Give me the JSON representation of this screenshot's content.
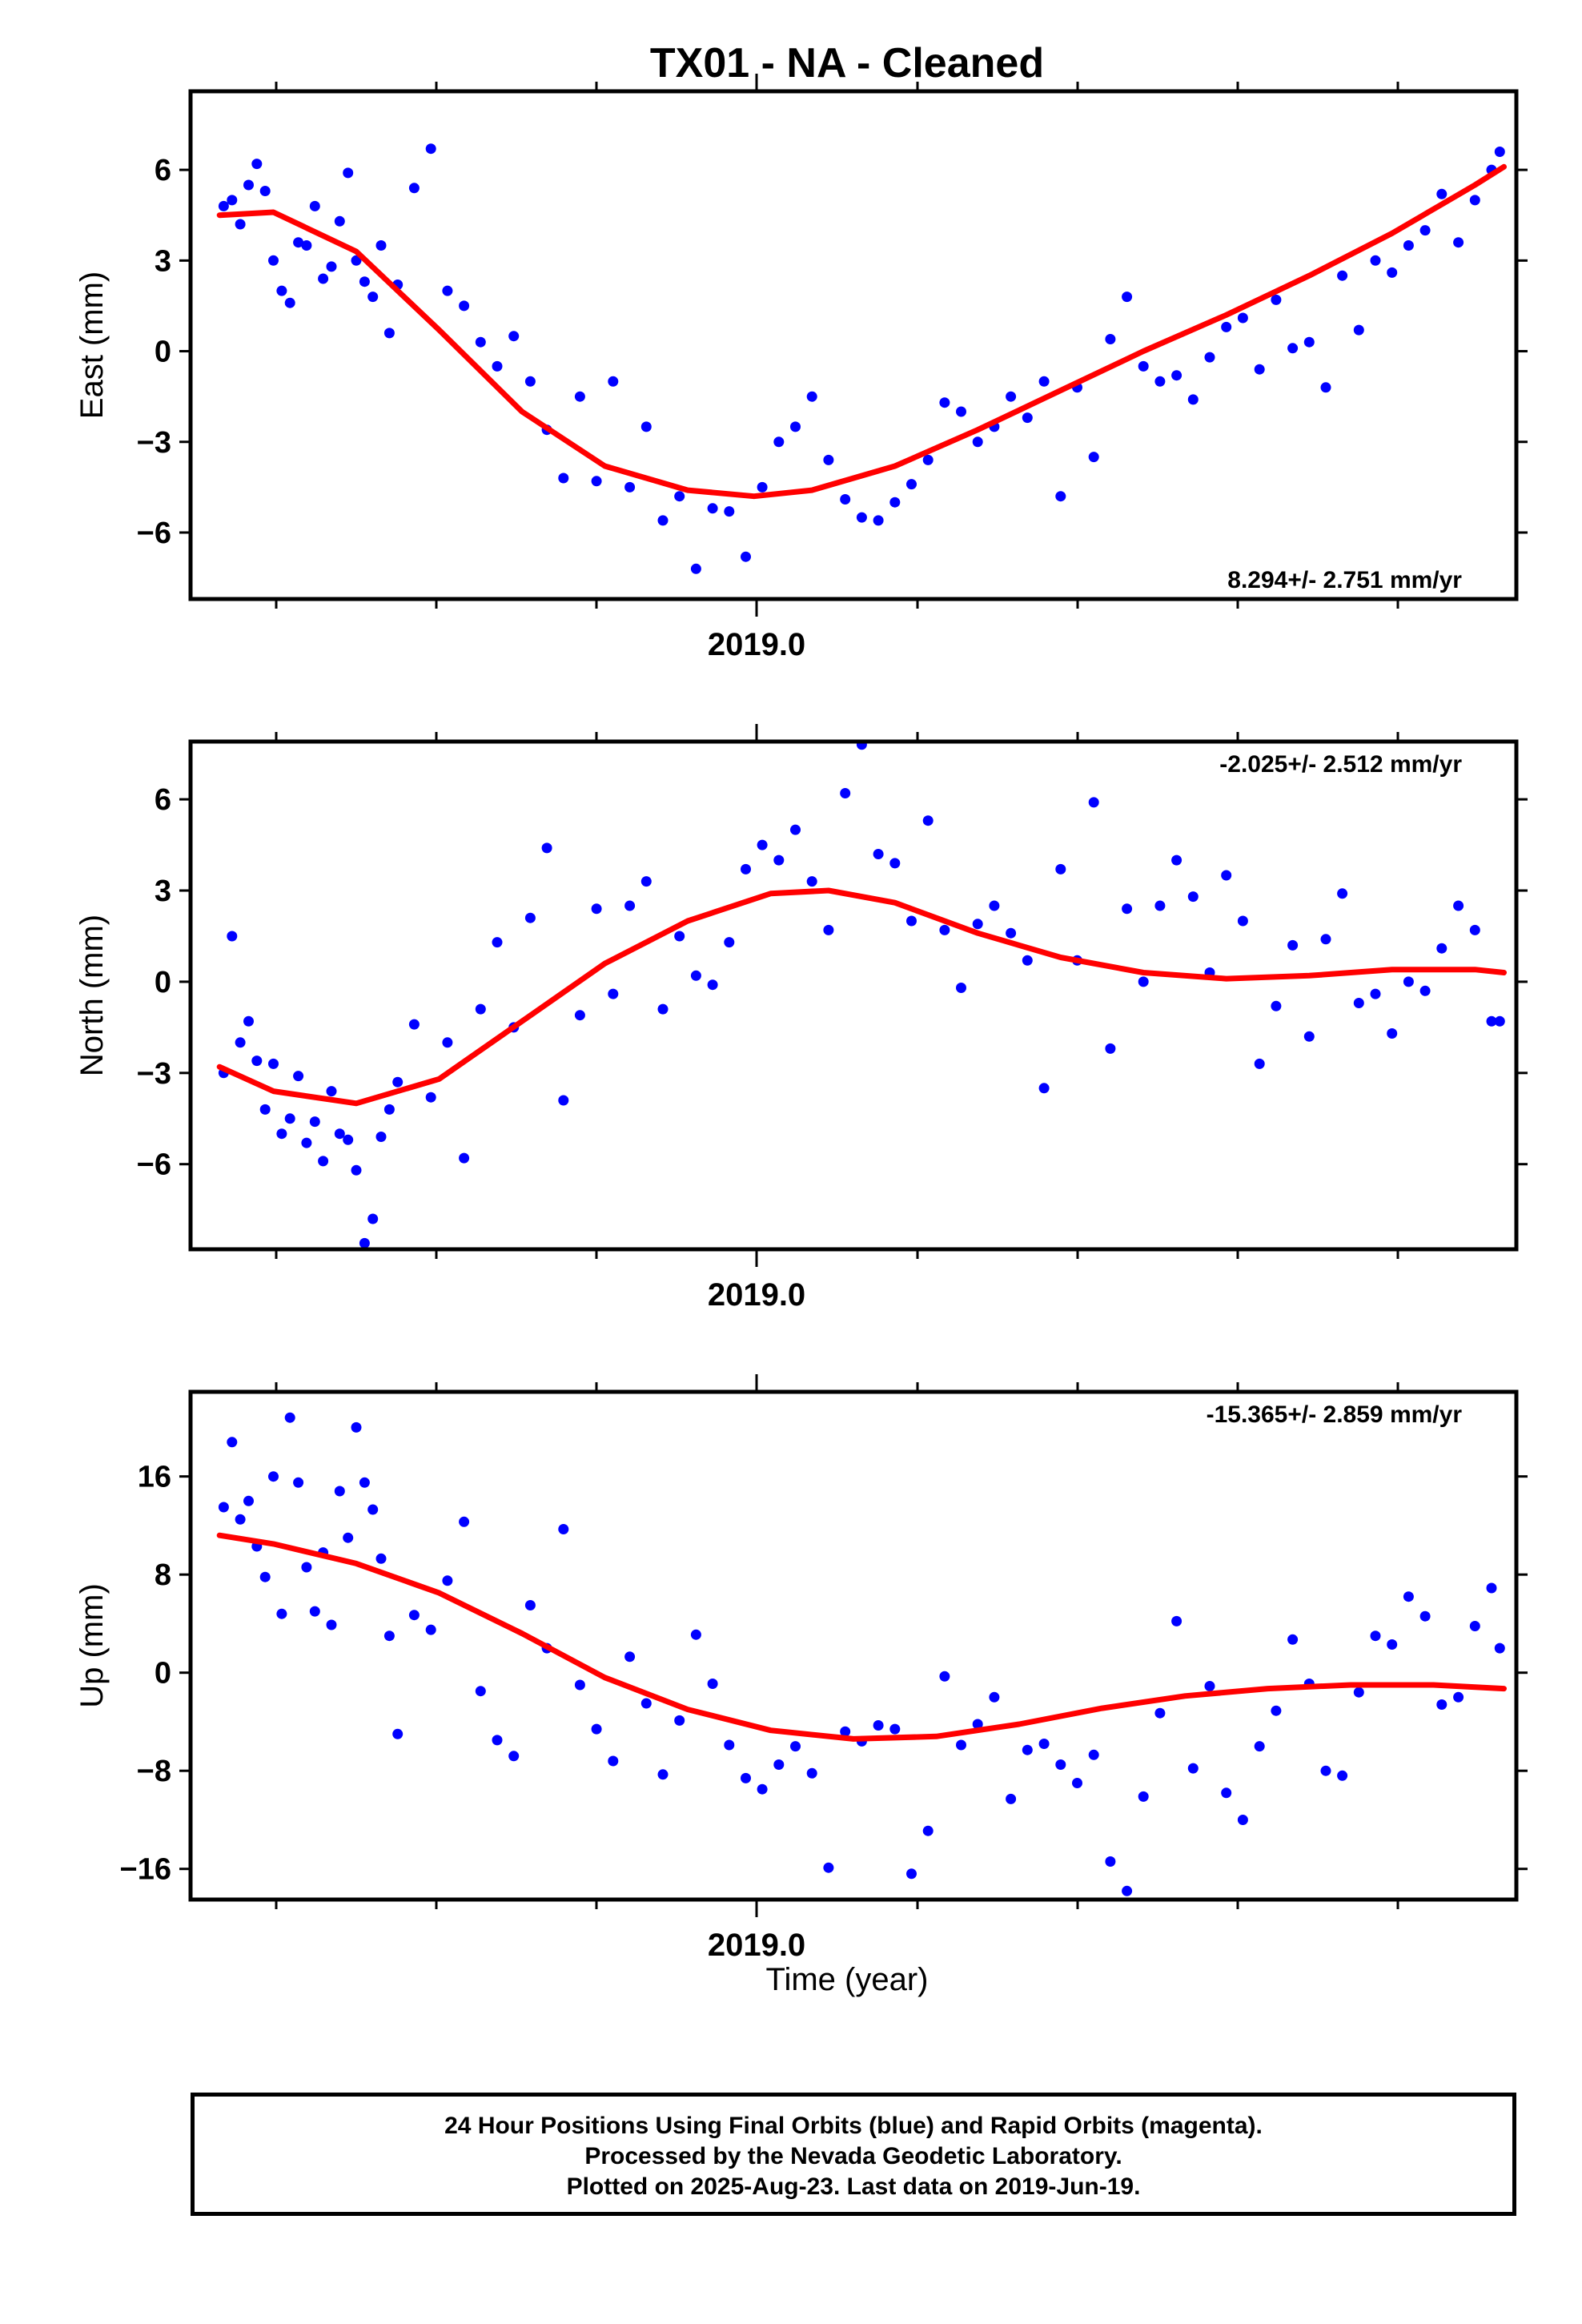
{
  "title": "TX01  - NA - Cleaned",
  "xlabel": "Time (year)",
  "footer": {
    "line1": "24 Hour Positions Using Final Orbits (blue) and Rapid Orbits (magenta).",
    "line2": "Processed by the Nevada Geodetic Laboratory.",
    "line3": "Plotted on 2025-Aug-23. Last data on 2019-Jun-19."
  },
  "colors": {
    "points": "#0000ff",
    "fit": "#ff0000",
    "frame": "#000000"
  },
  "chart_data": [
    {
      "type": "scatter",
      "name": "East",
      "ylabel": "East (mm)",
      "rate": "8.294+/- 2.751 mm/yr",
      "xlim": [
        2018.35,
        2019.95
      ],
      "ylim": [
        -8.2,
        8.6
      ],
      "yticks": [
        6,
        3,
        0,
        -3,
        -6
      ],
      "xtick_labels": [
        "2019.0"
      ],
      "fit": {
        "x": [
          2018.385,
          2018.45,
          2018.55,
          2018.65,
          2018.75,
          2018.85,
          2018.95,
          2019.03,
          2019.1,
          2019.2,
          2019.3,
          2019.4,
          2019.5,
          2019.6,
          2019.7,
          2019.8,
          2019.9,
          2019.935
        ],
        "y": [
          4.5,
          4.6,
          3.3,
          0.7,
          -2.0,
          -3.8,
          -4.6,
          -4.8,
          -4.6,
          -3.8,
          -2.6,
          -1.3,
          0.0,
          1.2,
          2.5,
          3.9,
          5.5,
          6.1
        ]
      },
      "points": {
        "x": [
          2018.39,
          2018.4,
          2018.41,
          2018.42,
          2018.43,
          2018.44,
          2018.45,
          2018.46,
          2018.47,
          2018.48,
          2018.49,
          2018.5,
          2018.51,
          2018.52,
          2018.53,
          2018.54,
          2018.55,
          2018.56,
          2018.57,
          2018.58,
          2018.59,
          2018.6,
          2018.62,
          2018.64,
          2018.66,
          2018.68,
          2018.7,
          2018.72,
          2018.74,
          2018.76,
          2018.78,
          2018.8,
          2018.82,
          2018.84,
          2018.86,
          2018.88,
          2018.9,
          2018.92,
          2018.94,
          2018.96,
          2018.98,
          2019.0,
          2019.02,
          2019.04,
          2019.06,
          2019.08,
          2019.1,
          2019.12,
          2019.14,
          2019.16,
          2019.18,
          2019.2,
          2019.22,
          2019.24,
          2019.26,
          2019.28,
          2019.3,
          2019.32,
          2019.34,
          2019.36,
          2019.38,
          2019.4,
          2019.42,
          2019.44,
          2019.46,
          2019.48,
          2019.5,
          2019.52,
          2019.54,
          2019.56,
          2019.58,
          2019.6,
          2019.62,
          2019.64,
          2019.66,
          2019.68,
          2019.7,
          2019.72,
          2019.74,
          2019.76,
          2019.78,
          2019.8,
          2019.82,
          2019.84,
          2019.86,
          2019.88,
          2019.9,
          2019.92,
          2019.93
        ],
        "y": [
          4.8,
          5.0,
          4.2,
          5.5,
          6.2,
          5.3,
          3.0,
          2.0,
          1.6,
          3.6,
          3.5,
          4.8,
          2.4,
          2.8,
          4.3,
          5.9,
          3.0,
          2.3,
          1.8,
          3.5,
          0.6,
          2.2,
          5.4,
          6.7,
          2.0,
          1.5,
          0.3,
          -0.5,
          0.5,
          -1.0,
          -2.6,
          -4.2,
          -1.5,
          -4.3,
          -1.0,
          -4.5,
          -2.5,
          -5.6,
          -4.8,
          -7.2,
          -5.2,
          -5.3,
          -6.8,
          -4.5,
          -3.0,
          -2.5,
          -1.5,
          -3.6,
          -4.9,
          -5.5,
          -5.6,
          -5.0,
          -4.4,
          -3.6,
          -1.7,
          -2.0,
          -3.0,
          -2.5,
          -1.5,
          -2.2,
          -1.0,
          -4.8,
          -1.2,
          -3.5,
          0.4,
          1.8,
          -0.5,
          -1.0,
          -0.8,
          -1.6,
          -0.2,
          0.8,
          1.1,
          -0.6,
          1.7,
          0.1,
          0.3,
          -1.2,
          2.5,
          0.7,
          3.0,
          2.6,
          3.5,
          4.0,
          5.2,
          3.6,
          5.0,
          6.0,
          6.6
        ]
      }
    },
    {
      "type": "scatter",
      "name": "North",
      "ylabel": "North (mm)",
      "rate": "-2.025+/- 2.512 mm/yr",
      "xlim": [
        2018.35,
        2019.95
      ],
      "ylim": [
        -8.8,
        7.9
      ],
      "yticks": [
        6,
        3,
        0,
        -3,
        -6
      ],
      "xtick_labels": [
        "2019.0"
      ],
      "fit": {
        "x": [
          2018.385,
          2018.45,
          2018.55,
          2018.65,
          2018.75,
          2018.85,
          2018.95,
          2019.05,
          2019.12,
          2019.2,
          2019.3,
          2019.4,
          2019.5,
          2019.6,
          2019.7,
          2019.8,
          2019.9,
          2019.935
        ],
        "y": [
          -2.8,
          -3.6,
          -4.0,
          -3.2,
          -1.3,
          0.6,
          2.0,
          2.9,
          3.0,
          2.6,
          1.6,
          0.8,
          0.3,
          0.1,
          0.2,
          0.4,
          0.4,
          0.3
        ]
      },
      "points": {
        "x": [
          2018.39,
          2018.4,
          2018.41,
          2018.42,
          2018.43,
          2018.44,
          2018.45,
          2018.46,
          2018.47,
          2018.48,
          2018.49,
          2018.5,
          2018.51,
          2018.52,
          2018.53,
          2018.54,
          2018.55,
          2018.56,
          2018.57,
          2018.58,
          2018.59,
          2018.6,
          2018.62,
          2018.64,
          2018.66,
          2018.68,
          2018.7,
          2018.72,
          2018.74,
          2018.76,
          2018.78,
          2018.8,
          2018.82,
          2018.84,
          2018.86,
          2018.88,
          2018.9,
          2018.92,
          2018.94,
          2018.96,
          2018.98,
          2019.0,
          2019.02,
          2019.04,
          2019.06,
          2019.08,
          2019.1,
          2019.12,
          2019.14,
          2019.16,
          2019.18,
          2019.2,
          2019.22,
          2019.24,
          2019.26,
          2019.28,
          2019.3,
          2019.32,
          2019.34,
          2019.36,
          2019.38,
          2019.4,
          2019.42,
          2019.44,
          2019.46,
          2019.48,
          2019.5,
          2019.52,
          2019.54,
          2019.56,
          2019.58,
          2019.6,
          2019.62,
          2019.64,
          2019.66,
          2019.68,
          2019.7,
          2019.72,
          2019.74,
          2019.76,
          2019.78,
          2019.8,
          2019.82,
          2019.84,
          2019.86,
          2019.88,
          2019.9,
          2019.92,
          2019.93
        ],
        "y": [
          -3.0,
          1.5,
          -2.0,
          -1.3,
          -2.6,
          -4.2,
          -2.7,
          -5.0,
          -4.5,
          -3.1,
          -5.3,
          -4.6,
          -5.9,
          -3.6,
          -5.0,
          -5.2,
          -6.2,
          -8.6,
          -7.8,
          -5.1,
          -4.2,
          -3.3,
          -1.4,
          -3.8,
          -2.0,
          -5.8,
          -0.9,
          1.3,
          -1.5,
          2.1,
          4.4,
          -3.9,
          -1.1,
          2.4,
          -0.4,
          2.5,
          3.3,
          -0.9,
          1.5,
          0.2,
          -0.1,
          1.3,
          3.7,
          4.5,
          4.0,
          5.0,
          3.3,
          1.7,
          6.2,
          7.8,
          4.2,
          3.9,
          2.0,
          5.3,
          1.7,
          -0.2,
          1.9,
          2.5,
          1.6,
          0.7,
          -3.5,
          3.7,
          0.7,
          5.9,
          -2.2,
          2.4,
          0.0,
          2.5,
          4.0,
          2.8,
          0.3,
          3.5,
          2.0,
          -2.7,
          -0.8,
          1.2,
          -1.8,
          1.4,
          2.9,
          -0.7,
          -0.4,
          -1.7,
          0.0,
          -0.3,
          1.1,
          2.5,
          1.7,
          -1.3,
          -1.3
        ]
      }
    },
    {
      "type": "scatter",
      "name": "Up",
      "ylabel": "Up (mm)",
      "rate": "-15.365+/- 2.859 mm/yr",
      "xlim": [
        2018.35,
        2019.95
      ],
      "ylim": [
        -18.5,
        22.9
      ],
      "yticks": [
        16,
        8,
        0,
        -8,
        -16
      ],
      "xtick_labels": [
        "2019.0"
      ],
      "fit": {
        "x": [
          2018.385,
          2018.45,
          2018.55,
          2018.65,
          2018.75,
          2018.85,
          2018.95,
          2019.05,
          2019.15,
          2019.25,
          2019.35,
          2019.45,
          2019.55,
          2019.65,
          2019.75,
          2019.85,
          2019.935
        ],
        "y": [
          11.2,
          10.5,
          8.9,
          6.5,
          3.2,
          -0.4,
          -3.0,
          -4.7,
          -5.4,
          -5.2,
          -4.2,
          -2.9,
          -1.9,
          -1.3,
          -1.0,
          -1.0,
          -1.3
        ]
      },
      "points": {
        "x": [
          2018.39,
          2018.4,
          2018.41,
          2018.42,
          2018.43,
          2018.44,
          2018.45,
          2018.46,
          2018.47,
          2018.48,
          2018.49,
          2018.5,
          2018.51,
          2018.52,
          2018.53,
          2018.54,
          2018.55,
          2018.56,
          2018.57,
          2018.58,
          2018.59,
          2018.6,
          2018.62,
          2018.64,
          2018.66,
          2018.68,
          2018.7,
          2018.72,
          2018.74,
          2018.76,
          2018.78,
          2018.8,
          2018.82,
          2018.84,
          2018.86,
          2018.88,
          2018.9,
          2018.92,
          2018.94,
          2018.96,
          2018.98,
          2019.0,
          2019.02,
          2019.04,
          2019.06,
          2019.08,
          2019.1,
          2019.12,
          2019.14,
          2019.16,
          2019.18,
          2019.2,
          2019.22,
          2019.24,
          2019.26,
          2019.28,
          2019.3,
          2019.32,
          2019.34,
          2019.36,
          2019.38,
          2019.4,
          2019.42,
          2019.44,
          2019.46,
          2019.48,
          2019.5,
          2019.52,
          2019.54,
          2019.56,
          2019.58,
          2019.6,
          2019.62,
          2019.64,
          2019.66,
          2019.68,
          2019.7,
          2019.72,
          2019.74,
          2019.76,
          2019.78,
          2019.8,
          2019.82,
          2019.84,
          2019.86,
          2019.88,
          2019.9,
          2019.92,
          2019.93
        ],
        "y": [
          13.5,
          18.8,
          12.5,
          14.0,
          10.3,
          7.8,
          16.0,
          4.8,
          20.8,
          15.5,
          8.6,
          5.0,
          9.8,
          3.9,
          14.8,
          11.0,
          20.0,
          15.5,
          13.3,
          9.3,
          3.0,
          -5.0,
          4.7,
          3.5,
          7.5,
          12.3,
          -1.5,
          -5.5,
          -6.8,
          5.5,
          2.0,
          11.7,
          -1.0,
          -4.6,
          -7.2,
          1.3,
          -2.5,
          -8.3,
          -3.9,
          3.1,
          -0.9,
          -5.9,
          -8.6,
          -9.5,
          -7.5,
          -6.0,
          -8.2,
          -15.9,
          -4.8,
          -5.6,
          -4.3,
          -4.6,
          -16.4,
          -12.9,
          -0.3,
          -5.9,
          -4.2,
          -2.0,
          -10.3,
          -6.3,
          -5.8,
          -7.5,
          -9.0,
          -6.7,
          -15.4,
          -17.8,
          -10.1,
          -3.3,
          4.2,
          -7.8,
          -1.1,
          -9.8,
          -12.0,
          -6.0,
          -3.1,
          2.7,
          -0.9,
          -8.0,
          -8.4,
          -1.6,
          3.0,
          2.3,
          6.2,
          4.6,
          -2.6,
          -2.0,
          3.8,
          6.9,
          2.0
        ]
      }
    }
  ]
}
